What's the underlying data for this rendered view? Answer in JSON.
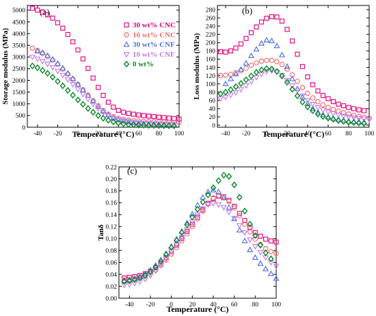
{
  "chart_data": [
    {
      "type": "scatter",
      "panel_label": "(a)",
      "xlabel": "Temperature (°C)",
      "ylabel": "Storage modulus (MPa)",
      "xlim": [
        -50,
        100
      ],
      "ylim": [
        0,
        5200
      ],
      "xticks": [
        -40,
        -20,
        0,
        20,
        40,
        60,
        80,
        100
      ],
      "yticks": [
        0,
        500,
        1000,
        1500,
        2000,
        2500,
        3000,
        3500,
        4000,
        4500,
        5000
      ],
      "legend": {
        "placement": "top-right"
      },
      "series": [
        {
          "name": "30 wt% CNC",
          "color": "#e6007e",
          "marker": "square",
          "x": [
            -45,
            -40,
            -35,
            -30,
            -25,
            -20,
            -15,
            -10,
            -5,
            0,
            5,
            10,
            15,
            20,
            25,
            30,
            35,
            40,
            45,
            50,
            55,
            60,
            65,
            70,
            75,
            80,
            85,
            90,
            95,
            100
          ],
          "y": [
            5080,
            5000,
            4920,
            4800,
            4660,
            4460,
            4230,
            3960,
            3650,
            3300,
            2920,
            2510,
            2100,
            1700,
            1360,
            1070,
            860,
            720,
            640,
            590,
            555,
            525,
            500,
            475,
            455,
            430,
            410,
            390,
            370,
            350
          ]
        },
        {
          "name": "10 wt% CNC",
          "color": "#f26a6a",
          "marker": "circle",
          "x": [
            -45,
            -40,
            -35,
            -30,
            -25,
            -20,
            -15,
            -10,
            -5,
            0,
            5,
            10,
            15,
            20,
            25,
            30,
            35,
            40,
            45,
            50,
            55,
            60,
            65,
            70,
            75,
            80,
            85,
            90,
            95,
            100
          ],
          "y": [
            3380,
            3280,
            3160,
            3020,
            2860,
            2680,
            2480,
            2270,
            2050,
            1830,
            1600,
            1370,
            1140,
            920,
            720,
            560,
            450,
            380,
            335,
            305,
            285,
            265,
            250,
            240,
            232,
            225,
            218,
            212,
            206,
            200
          ]
        },
        {
          "name": "30 wt% CNF",
          "color": "#4a6fe3",
          "marker": "triangle-up",
          "x": [
            -40,
            -35,
            -30,
            -25,
            -20,
            -15,
            -10,
            -5,
            0,
            5,
            10,
            15,
            20,
            25,
            30,
            35,
            40,
            45,
            50,
            55,
            60,
            65,
            70,
            75,
            80,
            85,
            90,
            95
          ],
          "y": [
            3250,
            3180,
            3060,
            2900,
            2720,
            2520,
            2300,
            2070,
            1830,
            1590,
            1350,
            1110,
            880,
            680,
            520,
            400,
            320,
            265,
            225,
            195,
            172,
            155,
            142,
            132,
            123,
            116,
            110,
            105
          ]
        },
        {
          "name": "10 wt% CNF",
          "color": "#c27be8",
          "marker": "triangle-down",
          "x": [
            -45,
            -40,
            -35,
            -30,
            -25,
            -20,
            -15,
            -10,
            -5,
            0,
            5,
            10,
            15,
            20,
            25,
            30,
            35,
            40,
            45,
            50,
            55,
            60,
            65,
            70,
            75,
            80,
            85,
            90,
            95
          ],
          "y": [
            3000,
            2920,
            2820,
            2700,
            2560,
            2400,
            2220,
            2030,
            1830,
            1620,
            1410,
            1200,
            990,
            800,
            630,
            490,
            390,
            320,
            270,
            235,
            210,
            190,
            175,
            162,
            152,
            143,
            136,
            130,
            125
          ]
        },
        {
          "name": "0 wt%",
          "color": "#0a8a2a",
          "marker": "diamond",
          "x": [
            -45,
            -40,
            -35,
            -30,
            -25,
            -20,
            -15,
            -10,
            -5,
            0,
            5,
            10,
            15,
            20,
            25,
            30,
            35,
            40,
            45,
            50,
            55,
            60,
            65,
            70,
            75,
            80,
            85,
            90,
            95
          ],
          "y": [
            2620,
            2540,
            2430,
            2300,
            2140,
            1960,
            1770,
            1570,
            1370,
            1170,
            980,
            800,
            640,
            500,
            385,
            295,
            228,
            180,
            145,
            120,
            103,
            92,
            84,
            78,
            73,
            69,
            66,
            63,
            60
          ]
        }
      ]
    },
    {
      "type": "scatter",
      "panel_label": "(b)",
      "xlabel": "Temperature (°C)",
      "ylabel": "Loss modulus (MPa)",
      "xlim": [
        -48,
        100
      ],
      "ylim": [
        -5,
        290
      ],
      "xticks": [
        -40,
        -20,
        0,
        20,
        40,
        60,
        80,
        100
      ],
      "yticks": [
        0,
        20,
        40,
        60,
        80,
        100,
        120,
        140,
        160,
        180,
        200,
        220,
        240,
        260,
        280
      ],
      "series": [
        {
          "name": "30 wt% CNC",
          "color": "#e6007e",
          "marker": "square",
          "x": [
            -45,
            -40,
            -35,
            -30,
            -25,
            -20,
            -15,
            -10,
            -5,
            0,
            5,
            10,
            15,
            20,
            25,
            30,
            35,
            40,
            45,
            50,
            55,
            60,
            65,
            70,
            75,
            80,
            85,
            90,
            95
          ],
          "y": [
            178,
            177,
            180,
            187,
            197,
            210,
            224,
            238,
            250,
            259,
            263,
            262,
            252,
            232,
            204,
            172,
            142,
            117,
            98,
            83,
            72,
            64,
            57,
            51,
            47,
            43,
            40,
            37,
            35
          ]
        },
        {
          "name": "10 wt% CNC",
          "color": "#f26a6a",
          "marker": "circle",
          "x": [
            -45,
            -40,
            -35,
            -30,
            -25,
            -20,
            -15,
            -10,
            -5,
            0,
            5,
            10,
            15,
            20,
            25,
            30,
            35,
            40,
            45,
            50,
            55,
            60,
            65,
            70,
            75,
            80,
            85,
            90,
            95,
            100
          ],
          "y": [
            120,
            121,
            123,
            127,
            132,
            138,
            145,
            151,
            155,
            157,
            157,
            154,
            147,
            136,
            122,
            106,
            91,
            77,
            66,
            57,
            49,
            43,
            38,
            34,
            30,
            27,
            24,
            21,
            19,
            17
          ]
        },
        {
          "name": "30 wt% CNF",
          "color": "#4a6fe3",
          "marker": "triangle-up",
          "x": [
            -40,
            -35,
            -30,
            -25,
            -20,
            -15,
            -10,
            -5,
            0,
            5,
            10,
            15,
            20,
            25,
            30,
            35,
            40,
            45,
            50,
            55,
            60,
            65,
            70,
            75,
            80,
            85,
            90,
            95
          ],
          "y": [
            100,
            112,
            124,
            135,
            150,
            168,
            184,
            198,
            206,
            204,
            192,
            170,
            142,
            112,
            88,
            68,
            52,
            40,
            31,
            25,
            20,
            17,
            14,
            12,
            10,
            9,
            8,
            7
          ]
        },
        {
          "name": "10 wt% CNF",
          "color": "#c27be8",
          "marker": "triangle-down",
          "x": [
            -45,
            -40,
            -35,
            -30,
            -25,
            -20,
            -15,
            -10,
            -5,
            0,
            5,
            10,
            15,
            20,
            25,
            30,
            35,
            40,
            45,
            50,
            55,
            60,
            65,
            70,
            75,
            80,
            85,
            90,
            95,
            100
          ],
          "y": [
            64,
            68,
            73,
            79,
            87,
            96,
            106,
            116,
            124,
            130,
            132,
            129,
            121,
            109,
            96,
            83,
            71,
            60,
            51,
            43,
            37,
            32,
            28,
            25,
            22,
            20,
            18,
            16,
            15,
            14
          ]
        },
        {
          "name": "0 wt%",
          "color": "#0a8a2a",
          "marker": "diamond",
          "x": [
            -45,
            -40,
            -35,
            -30,
            -25,
            -20,
            -15,
            -10,
            -5,
            0,
            5,
            10,
            15,
            20,
            25,
            30,
            35,
            40,
            45,
            50,
            55,
            60,
            65,
            70,
            75,
            80,
            85,
            90,
            95
          ],
          "y": [
            76,
            80,
            86,
            93,
            101,
            110,
            119,
            128,
            134,
            137,
            136,
            130,
            119,
            104,
            87,
            71,
            56,
            44,
            35,
            27,
            21,
            17,
            14,
            11,
            9,
            7,
            6,
            5,
            4
          ]
        }
      ]
    },
    {
      "type": "scatter",
      "panel_label": "(c)",
      "xlabel": "Temperature (°C)",
      "ylabel": "Tanδ",
      "xlim": [
        -50,
        100
      ],
      "ylim": [
        0,
        0.22
      ],
      "xticks": [
        -40,
        -20,
        0,
        20,
        40,
        60,
        80,
        100
      ],
      "yticks": [
        0.0,
        0.02,
        0.04,
        0.06,
        0.08,
        0.1,
        0.12,
        0.14,
        0.16,
        0.18,
        0.2,
        0.22
      ],
      "series": [
        {
          "name": "30 wt% CNC",
          "color": "#e6007e",
          "marker": "square",
          "x": [
            -45,
            -40,
            -35,
            -30,
            -25,
            -20,
            -15,
            -10,
            -5,
            0,
            5,
            10,
            15,
            20,
            25,
            30,
            35,
            40,
            45,
            50,
            55,
            60,
            65,
            70,
            75,
            80,
            85,
            90,
            95,
            100
          ],
          "y": [
            0.034,
            0.035,
            0.036,
            0.038,
            0.041,
            0.045,
            0.051,
            0.059,
            0.068,
            0.078,
            0.089,
            0.1,
            0.112,
            0.124,
            0.136,
            0.148,
            0.159,
            0.167,
            0.171,
            0.17,
            0.164,
            0.154,
            0.142,
            0.13,
            0.119,
            0.11,
            0.104,
            0.099,
            0.096,
            0.094
          ]
        },
        {
          "name": "10 wt% CNC",
          "color": "#f26a6a",
          "marker": "circle",
          "x": [
            -45,
            -40,
            -35,
            -30,
            -25,
            -20,
            -15,
            -10,
            -5,
            0,
            5,
            10,
            15,
            20,
            25,
            30,
            35,
            40,
            45,
            50,
            55,
            60,
            65,
            70,
            75,
            80,
            85,
            90,
            95,
            100
          ],
          "y": [
            0.03,
            0.031,
            0.032,
            0.034,
            0.037,
            0.041,
            0.047,
            0.055,
            0.064,
            0.074,
            0.085,
            0.096,
            0.108,
            0.12,
            0.133,
            0.146,
            0.158,
            0.168,
            0.172,
            0.17,
            0.162,
            0.151,
            0.138,
            0.124,
            0.111,
            0.099,
            0.09,
            0.083,
            0.078,
            0.075
          ]
        },
        {
          "name": "30 wt% CNF",
          "color": "#4a6fe3",
          "marker": "triangle-up",
          "x": [
            -45,
            -40,
            -35,
            -30,
            -25,
            -20,
            -15,
            -10,
            -5,
            0,
            5,
            10,
            15,
            20,
            25,
            30,
            35,
            40,
            45,
            50,
            55,
            60,
            65,
            70,
            75,
            80,
            85,
            90,
            95,
            100
          ],
          "y": [
            0.03,
            0.031,
            0.033,
            0.036,
            0.041,
            0.047,
            0.055,
            0.064,
            0.075,
            0.087,
            0.099,
            0.112,
            0.126,
            0.141,
            0.156,
            0.169,
            0.178,
            0.181,
            0.178,
            0.168,
            0.152,
            0.133,
            0.114,
            0.096,
            0.081,
            0.068,
            0.058,
            0.049,
            0.041,
            0.033
          ]
        },
        {
          "name": "10 wt% CNF",
          "color": "#c27be8",
          "marker": "triangle-down",
          "x": [
            -45,
            -40,
            -35,
            -30,
            -25,
            -20,
            -15,
            -10,
            -5,
            0,
            5,
            10,
            15,
            20,
            25,
            30,
            35,
            40,
            45,
            50,
            55,
            60,
            65,
            70,
            75,
            80,
            85,
            90,
            95,
            100
          ],
          "y": [
            0.022,
            0.023,
            0.025,
            0.028,
            0.032,
            0.038,
            0.046,
            0.055,
            0.066,
            0.078,
            0.09,
            0.102,
            0.115,
            0.128,
            0.14,
            0.15,
            0.157,
            0.159,
            0.157,
            0.152,
            0.144,
            0.134,
            0.122,
            0.11,
            0.098,
            0.087,
            0.077,
            0.068,
            0.06,
            0.054
          ]
        },
        {
          "name": "0 wt%",
          "color": "#0a8a2a",
          "marker": "diamond",
          "x": [
            -45,
            -40,
            -35,
            -30,
            -25,
            -20,
            -15,
            -10,
            -5,
            0,
            5,
            10,
            15,
            20,
            25,
            30,
            35,
            40,
            45,
            50,
            55,
            60,
            65,
            70,
            75,
            80,
            85,
            90,
            95
          ],
          "y": [
            0.028,
            0.029,
            0.031,
            0.034,
            0.038,
            0.044,
            0.052,
            0.062,
            0.073,
            0.085,
            0.097,
            0.11,
            0.123,
            0.136,
            0.149,
            0.161,
            0.173,
            0.185,
            0.197,
            0.206,
            0.204,
            0.19,
            0.169,
            0.146,
            0.124,
            0.105,
            0.089,
            0.076,
            0.066
          ]
        }
      ]
    }
  ]
}
